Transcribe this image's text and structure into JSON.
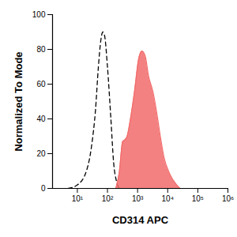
{
  "chart_data": {
    "type": "area",
    "xlabel": "CD314 APC",
    "ylabel": "Normalized To Mode",
    "log": "x",
    "xlim": [
      1.5,
      1000000
    ],
    "xticks": [
      {
        "value": 10,
        "label": "10¹"
      },
      {
        "value": 100,
        "label": "10²"
      },
      {
        "value": 1000,
        "label": "10³"
      },
      {
        "value": 10000,
        "label": "10⁴"
      },
      {
        "value": 100000,
        "label": "10⁵"
      },
      {
        "value": 1000000,
        "label": "10⁶"
      }
    ],
    "ylim": [
      0,
      100
    ],
    "yticks": [
      0,
      20,
      40,
      60,
      80,
      100
    ],
    "series": [
      {
        "type": "line",
        "color": "#000000",
        "line_style": "dashed",
        "x": [
          5,
          10,
          20,
          30,
          40,
          50,
          60,
          70,
          80,
          100,
          130,
          160,
          200,
          250
        ],
        "values": [
          0,
          2,
          10,
          25,
          45,
          70,
          85,
          90,
          88,
          70,
          40,
          15,
          4,
          0
        ]
      },
      {
        "type": "area",
        "color": "#f26b6b",
        "x": [
          190,
          250,
          320,
          380,
          450,
          580,
          780,
          1100,
          1400,
          1800,
          2300,
          3300,
          4200,
          5700,
          7500,
          12000,
          20000,
          26000
        ],
        "values": [
          0,
          10,
          27,
          28,
          30,
          40,
          55,
          75,
          79,
          76,
          65,
          55,
          45,
          30,
          18,
          8,
          2,
          0
        ]
      }
    ]
  }
}
